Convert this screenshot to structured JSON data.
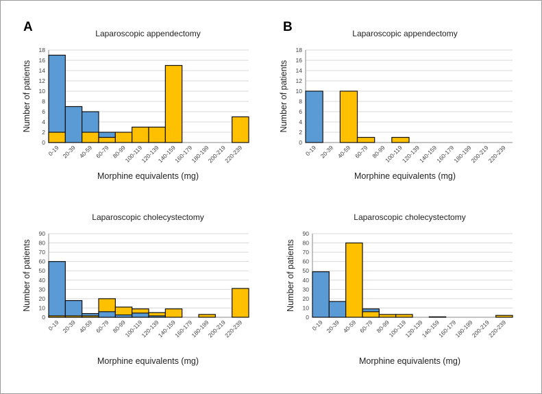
{
  "panels": [
    {
      "letter": "A"
    },
    {
      "letter": "B"
    }
  ],
  "colors": {
    "series_a": "#5b9bd5",
    "series_b": "#ffc000",
    "grid": "#d9d9d9"
  },
  "chart_data": [
    {
      "type": "bar",
      "panel": "A",
      "title": "Laparoscopic appendectomy",
      "xlabel": "Morphine equivalents (mg)",
      "ylabel": "Number of patients",
      "ylim": [
        0,
        18
      ],
      "yticks": [
        0,
        2,
        4,
        6,
        8,
        10,
        12,
        14,
        16,
        18
      ],
      "categories": [
        "0-19",
        "20-39",
        "40-59",
        "60-79",
        "80-99",
        "100-119",
        "120-139",
        "140-159",
        "160-179",
        "180-199",
        "200-219",
        "220-239"
      ],
      "series": [
        {
          "name": "blue",
          "values": [
            17,
            7,
            6,
            2,
            0,
            0,
            0,
            0,
            0,
            0,
            0,
            0
          ]
        },
        {
          "name": "yellow",
          "values": [
            2,
            0,
            2,
            1,
            2,
            3,
            3,
            15,
            0,
            0,
            0,
            5
          ]
        }
      ]
    },
    {
      "type": "bar",
      "panel": "A",
      "title": "Laparoscopic cholecystectomy",
      "xlabel": "Morphine equivalents (mg)",
      "ylabel": "Number of patients",
      "ylim": [
        0,
        90
      ],
      "yticks": [
        0,
        10,
        20,
        30,
        40,
        50,
        60,
        70,
        80,
        90
      ],
      "categories": [
        "0-19",
        "20-39",
        "40-59",
        "60-79",
        "80-99",
        "100-119",
        "120-139",
        "140-159",
        "160-179",
        "180-199",
        "200-219",
        "220-239"
      ],
      "series": [
        {
          "name": "blue",
          "values": [
            60,
            18,
            4,
            6,
            2.5,
            4.5,
            1.5,
            0,
            0,
            0,
            0,
            0
          ]
        },
        {
          "name": "yellow",
          "values": [
            1.5,
            1.5,
            1.5,
            20,
            11,
            9,
            5,
            9,
            0,
            3,
            0,
            31
          ]
        }
      ]
    },
    {
      "type": "bar",
      "panel": "B",
      "title": "Laparoscopic appendectomy",
      "xlabel": "Morphine equivalents (mg)",
      "ylabel": "Number of patients",
      "ylim": [
        0,
        18
      ],
      "yticks": [
        0,
        2,
        4,
        6,
        8,
        10,
        12,
        14,
        16,
        18
      ],
      "categories": [
        "0-19",
        "20-39",
        "40-59",
        "60-79",
        "80-99",
        "100-119",
        "120-139",
        "140-159",
        "160-179",
        "180-199",
        "200-219",
        "220-239"
      ],
      "series": [
        {
          "name": "blue",
          "values": [
            10,
            0,
            0,
            0,
            0,
            0,
            0,
            0,
            0,
            0,
            0,
            0
          ]
        },
        {
          "name": "yellow",
          "values": [
            0,
            0,
            10,
            1,
            0,
            1,
            0,
            0,
            0,
            0,
            0,
            0
          ]
        }
      ]
    },
    {
      "type": "bar",
      "panel": "B",
      "title": "Laparoscopic cholecystectomy",
      "xlabel": "Morphine equivalents (mg)",
      "ylabel": "Number of patients",
      "ylim": [
        0,
        90
      ],
      "yticks": [
        0,
        10,
        20,
        30,
        40,
        50,
        60,
        70,
        80,
        90
      ],
      "categories": [
        "0-19",
        "20-39",
        "40-59",
        "60-79",
        "80-99",
        "100-119",
        "120-139",
        "140-159",
        "160-179",
        "180-199",
        "200-219",
        "220-239"
      ],
      "series": [
        {
          "name": "blue",
          "values": [
            49,
            17,
            0,
            9,
            0,
            0,
            0,
            0.5,
            0,
            0,
            0,
            0
          ]
        },
        {
          "name": "yellow",
          "values": [
            0,
            0,
            80,
            6,
            3,
            3,
            0,
            0,
            0,
            0,
            0,
            2
          ]
        }
      ]
    }
  ]
}
